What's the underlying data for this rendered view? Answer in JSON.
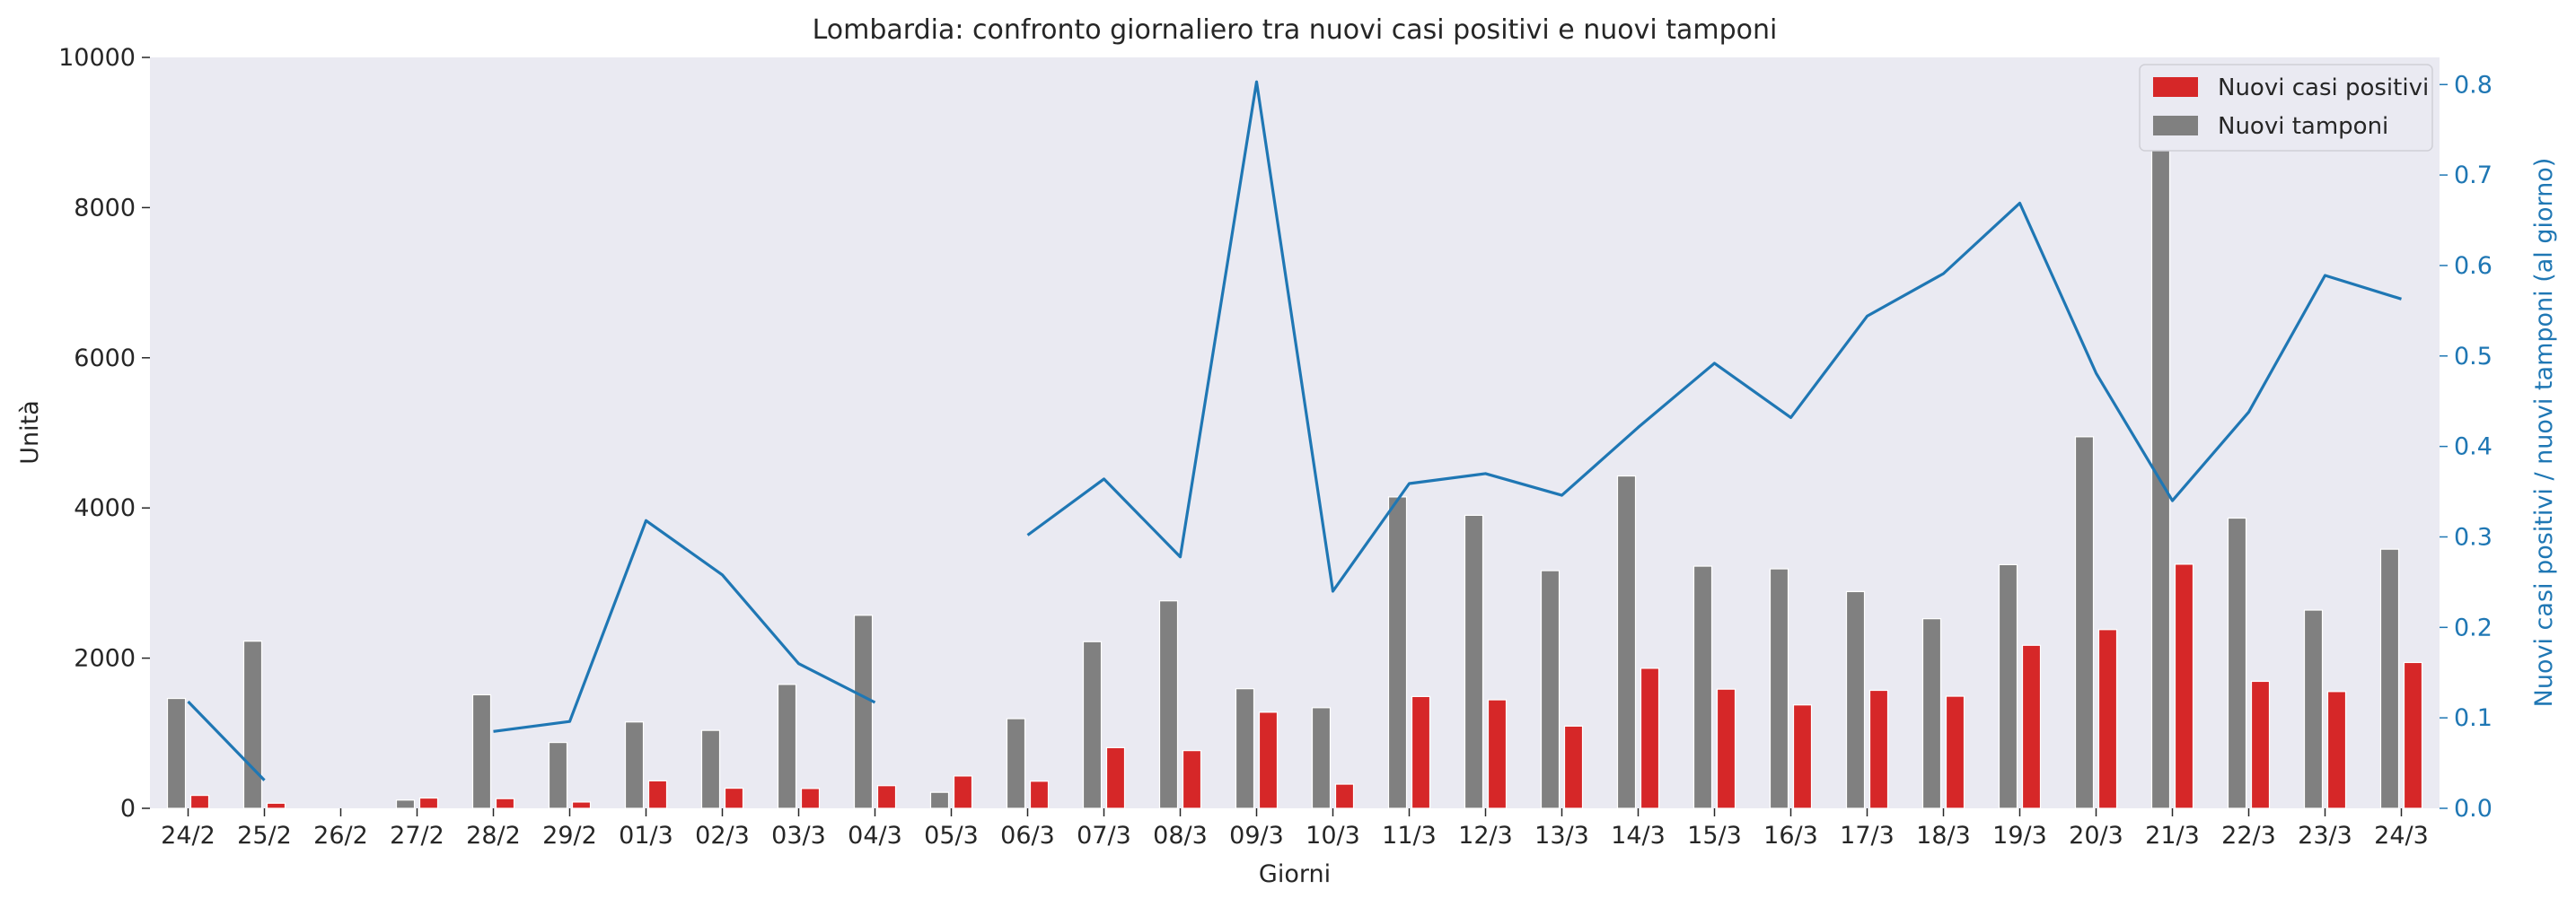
{
  "chart_data": {
    "type": "bar",
    "title": "Lombardia: confronto giornaliero tra nuovi casi positivi e nuovi tamponi",
    "xlabel": "Giorni",
    "ylabel": "Unità",
    "y2label": "Nuovi casi positivi / nuovi tamponi (al giorno)",
    "ylim": [
      0,
      10000
    ],
    "y2lim": [
      0,
      0.83
    ],
    "yticks": [
      "0",
      "2000",
      "4000",
      "6000",
      "8000",
      "10000"
    ],
    "y2ticks": [
      "0.0",
      "0.1",
      "0.2",
      "0.3",
      "0.4",
      "0.5",
      "0.6",
      "0.7",
      "0.8"
    ],
    "grid": false,
    "legend_position": "top-right",
    "categories": [
      "24/2",
      "25/2",
      "26/2",
      "27/2",
      "28/2",
      "29/2",
      "01/3",
      "02/3",
      "03/3",
      "04/3",
      "05/3",
      "06/3",
      "07/3",
      "08/3",
      "09/3",
      "10/3",
      "11/3",
      "12/3",
      "13/3",
      "14/3",
      "15/3",
      "16/3",
      "17/3",
      "18/3",
      "19/3",
      "20/3",
      "21/3",
      "22/3",
      "23/3",
      "24/3"
    ],
    "series": [
      {
        "name": "Nuovi tamponi",
        "type": "bar",
        "axis": "left",
        "color": "#808080",
        "values": [
          1463,
          2226,
          0,
          110,
          1512,
          877,
          1150,
          1038,
          1650,
          2571,
          213,
          1194,
          2219,
          2763,
          1593,
          1340,
          4147,
          3902,
          3165,
          4426,
          3225,
          3189,
          2886,
          2525,
          3245,
          4948,
          9565,
          3865,
          2640,
          3451
        ]
      },
      {
        "name": "Nuovi casi positivi",
        "type": "bar",
        "axis": "left",
        "color": "#d62728",
        "values": [
          172,
          68,
          0,
          137,
          129,
          84,
          366,
          268,
          264,
          302,
          431,
          361,
          808,
          769,
          1280,
          322,
          1489,
          1445,
          1095,
          1865,
          1587,
          1377,
          1571,
          1493,
          2171,
          2380,
          3251,
          1691,
          1555,
          1942
        ]
      },
      {
        "name": "",
        "type": "line",
        "axis": "right",
        "color": "#1f77b4",
        "values": [
          0.118,
          0.031,
          null,
          null,
          0.085,
          0.096,
          0.318,
          0.258,
          0.16,
          0.117,
          null,
          0.302,
          0.364,
          0.278,
          0.803,
          0.24,
          0.359,
          0.37,
          0.346,
          0.421,
          0.492,
          0.432,
          0.544,
          0.591,
          0.669,
          0.481,
          0.34,
          0.438,
          0.589,
          0.563
        ]
      }
    ],
    "colors": {
      "plot_background": "#eaeaf2",
      "right_axis": "#1f77b4",
      "text": "#262626"
    }
  }
}
